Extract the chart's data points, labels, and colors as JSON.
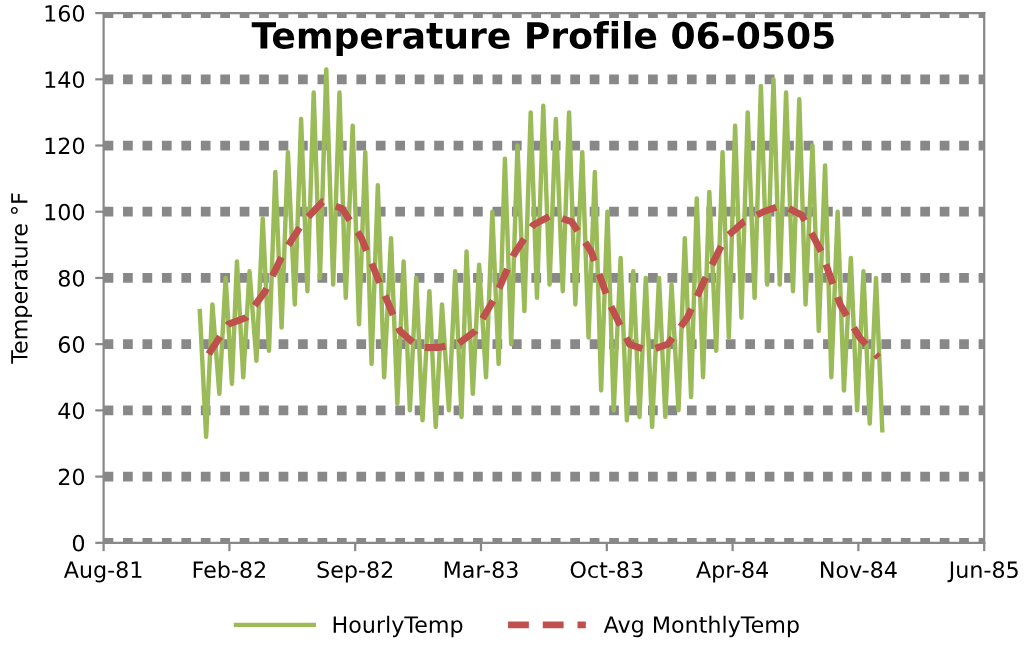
{
  "chart_data": {
    "type": "line",
    "title": "Temperature Profile 06-0505",
    "ylabel": "Temperature °F",
    "xlim": [
      "1981-08-01",
      "1985-06-01"
    ],
    "xticks": [
      {
        "value": "1981-08-01",
        "label": "Aug-81"
      },
      {
        "value": "1982-02-17",
        "label": "Feb-82"
      },
      {
        "value": "1982-09-05",
        "label": "Sep-82"
      },
      {
        "value": "1983-03-24",
        "label": "Mar-83"
      },
      {
        "value": "1983-10-10",
        "label": "Oct-83"
      },
      {
        "value": "1984-04-27",
        "label": "Apr-84"
      },
      {
        "value": "1984-11-13",
        "label": "Nov-84"
      },
      {
        "value": "1985-06-01",
        "label": "Jun-85"
      }
    ],
    "ylim": [
      0,
      160
    ],
    "yticks": [
      0,
      20,
      40,
      60,
      80,
      100,
      120,
      140,
      160
    ],
    "grid": "y",
    "legend": "bottom",
    "series": [
      {
        "name": "HourlyTemp",
        "color": "#9bbb59",
        "line_style": "solid",
        "marker": "none",
        "x": [
          "1982-01-01",
          "1982-01-11",
          "1982-01-21",
          "1982-02-01",
          "1982-02-11",
          "1982-02-21",
          "1982-03-01",
          "1982-03-11",
          "1982-03-21",
          "1982-04-01",
          "1982-04-11",
          "1982-04-21",
          "1982-05-01",
          "1982-05-11",
          "1982-05-21",
          "1982-06-01",
          "1982-06-11",
          "1982-06-21",
          "1982-07-01",
          "1982-07-11",
          "1982-07-21",
          "1982-08-01",
          "1982-08-11",
          "1982-08-21",
          "1982-09-01",
          "1982-09-11",
          "1982-09-21",
          "1982-10-01",
          "1982-10-11",
          "1982-10-21",
          "1982-11-01",
          "1982-11-11",
          "1982-11-21",
          "1982-12-01",
          "1982-12-11",
          "1982-12-21",
          "1983-01-01",
          "1983-01-11",
          "1983-01-21",
          "1983-02-01",
          "1983-02-11",
          "1983-02-21",
          "1983-03-01",
          "1983-03-11",
          "1983-03-21",
          "1983-04-01",
          "1983-04-11",
          "1983-04-21",
          "1983-05-01",
          "1983-05-11",
          "1983-05-21",
          "1983-06-01",
          "1983-06-11",
          "1983-06-21",
          "1983-07-01",
          "1983-07-11",
          "1983-07-21",
          "1983-08-01",
          "1983-08-11",
          "1983-08-21",
          "1983-09-01",
          "1983-09-11",
          "1983-09-21",
          "1983-10-01",
          "1983-10-11",
          "1983-10-21",
          "1983-11-01",
          "1983-11-11",
          "1983-11-21",
          "1983-12-01",
          "1983-12-11",
          "1983-12-21",
          "1984-01-01",
          "1984-01-11",
          "1984-01-21",
          "1984-02-01",
          "1984-02-11",
          "1984-02-21",
          "1984-03-01",
          "1984-03-11",
          "1984-03-21",
          "1984-04-01",
          "1984-04-11",
          "1984-04-21",
          "1984-05-01",
          "1984-05-11",
          "1984-05-21",
          "1984-06-01",
          "1984-06-11",
          "1984-06-21",
          "1984-07-01",
          "1984-07-11",
          "1984-07-21",
          "1984-08-01",
          "1984-08-11",
          "1984-08-21",
          "1984-09-01",
          "1984-09-11",
          "1984-09-21",
          "1984-10-01",
          "1984-10-11",
          "1984-10-21",
          "1984-11-01",
          "1984-11-11",
          "1984-11-21",
          "1984-12-01",
          "1984-12-11",
          "1984-12-21"
        ],
        "values": [
          70,
          32,
          72,
          45,
          80,
          48,
          85,
          50,
          82,
          55,
          98,
          58,
          112,
          65,
          118,
          72,
          128,
          76,
          136,
          80,
          143,
          78,
          136,
          74,
          126,
          66,
          118,
          54,
          108,
          50,
          92,
          42,
          85,
          40,
          80,
          37,
          76,
          35,
          72,
          40,
          82,
          38,
          88,
          45,
          84,
          50,
          100,
          54,
          116,
          60,
          120,
          70,
          130,
          74,
          132,
          78,
          128,
          76,
          130,
          72,
          118,
          62,
          112,
          46,
          100,
          40,
          86,
          37,
          82,
          38,
          80,
          35,
          80,
          38,
          78,
          40,
          92,
          44,
          104,
          50,
          106,
          58,
          118,
          62,
          126,
          68,
          130,
          74,
          138,
          78,
          140,
          78,
          136,
          76,
          134,
          72,
          120,
          64,
          114,
          50,
          100,
          46,
          86,
          40,
          82,
          36,
          80,
          34
        ]
      },
      {
        "name": "Avg MonthlyTemp",
        "color": "#c0504d",
        "line_style": "dashed",
        "marker": "none",
        "x": [
          "1982-01-15",
          "1982-02-15",
          "1982-03-15",
          "1982-04-15",
          "1982-05-15",
          "1982-06-15",
          "1982-07-15",
          "1982-08-15",
          "1982-09-15",
          "1982-10-15",
          "1982-11-15",
          "1982-12-15",
          "1983-01-15",
          "1983-02-15",
          "1983-03-15",
          "1983-04-15",
          "1983-05-15",
          "1983-06-15",
          "1983-07-15",
          "1983-08-15",
          "1983-09-15",
          "1983-10-15",
          "1983-11-15",
          "1983-12-15",
          "1984-01-15",
          "1984-02-15",
          "1984-03-15",
          "1984-04-15",
          "1984-05-15",
          "1984-06-15",
          "1984-07-15",
          "1984-08-15",
          "1984-09-15",
          "1984-10-15",
          "1984-11-15",
          "1984-12-15"
        ],
        "values": [
          57,
          66,
          68,
          76,
          88,
          97,
          103,
          101,
          92,
          78,
          64,
          59,
          59,
          60,
          64,
          74,
          87,
          96,
          99,
          97,
          88,
          72,
          60,
          58,
          60,
          68,
          80,
          92,
          97,
          100,
          102,
          99,
          88,
          72,
          62,
          56
        ]
      }
    ]
  }
}
